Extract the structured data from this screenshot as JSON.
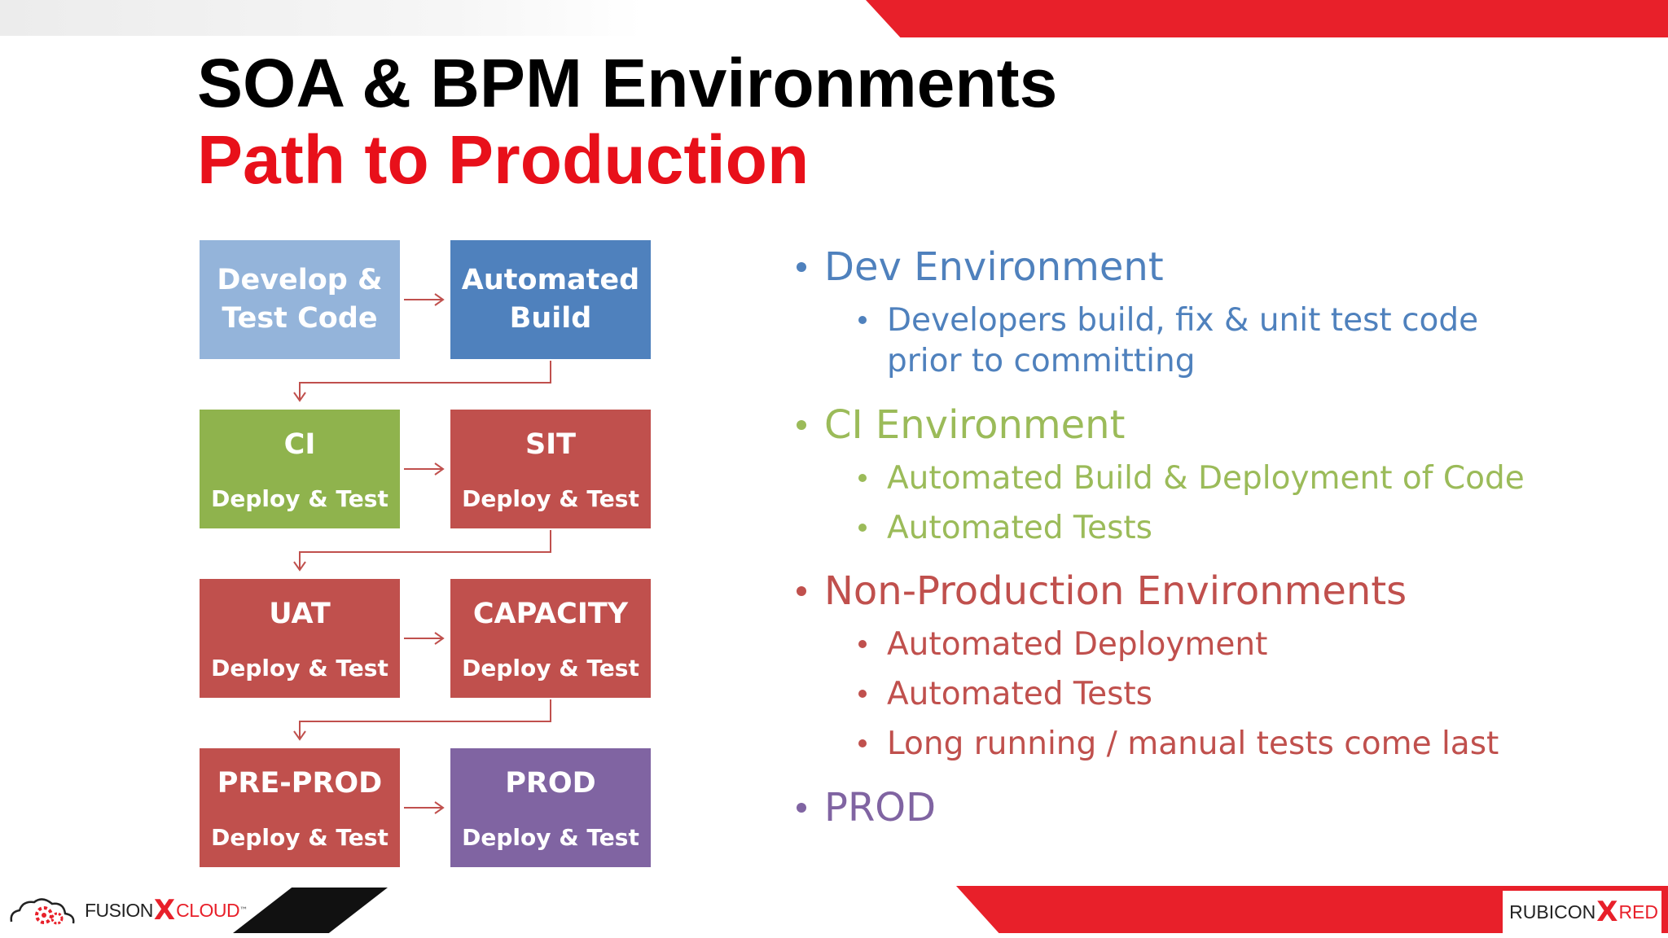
{
  "title": {
    "line1": "SOA & BPM Environments",
    "line2": "Path to Production"
  },
  "flow": {
    "develop": {
      "line1": "Develop &",
      "line2": "Test Code"
    },
    "build": {
      "line1": "Automated",
      "line2": "Build"
    },
    "ci": {
      "name": "CI",
      "sub": "Deploy & Test"
    },
    "sit": {
      "name": "SIT",
      "sub": "Deploy & Test"
    },
    "uat": {
      "name": "UAT",
      "sub": "Deploy & Test"
    },
    "capacity": {
      "name": "CAPACITY",
      "sub": "Deploy & Test"
    },
    "preprod": {
      "name": "PRE-PROD",
      "sub": "Deploy & Test"
    },
    "prod": {
      "name": "PROD",
      "sub": "Deploy & Test"
    }
  },
  "bullets": {
    "dev": {
      "heading": "Dev Environment",
      "items": [
        "Developers build, fix & unit test code",
        "prior to committing"
      ]
    },
    "ci": {
      "heading": "CI Environment",
      "items": [
        "Automated Build & Deployment of Code",
        "Automated Tests"
      ]
    },
    "nonprod": {
      "heading": "Non-Production Environments",
      "items": [
        "Automated Deployment",
        "Automated Tests",
        "Long running / manual tests come last"
      ]
    },
    "prod": {
      "heading": "PROD"
    }
  },
  "logos": {
    "left": {
      "part1": "FUSION",
      "x": "X",
      "part2": "CLOUD",
      "tm": "™"
    },
    "right": {
      "part1": "RUBICON",
      "x": "X",
      "part2": "RED"
    }
  },
  "colors": {
    "brand_red": "#e8202a",
    "light_blue": "#94b4da",
    "blue": "#4f81bd",
    "green": "#8fb34d",
    "red": "#c0504d",
    "purple": "#8064a2"
  }
}
